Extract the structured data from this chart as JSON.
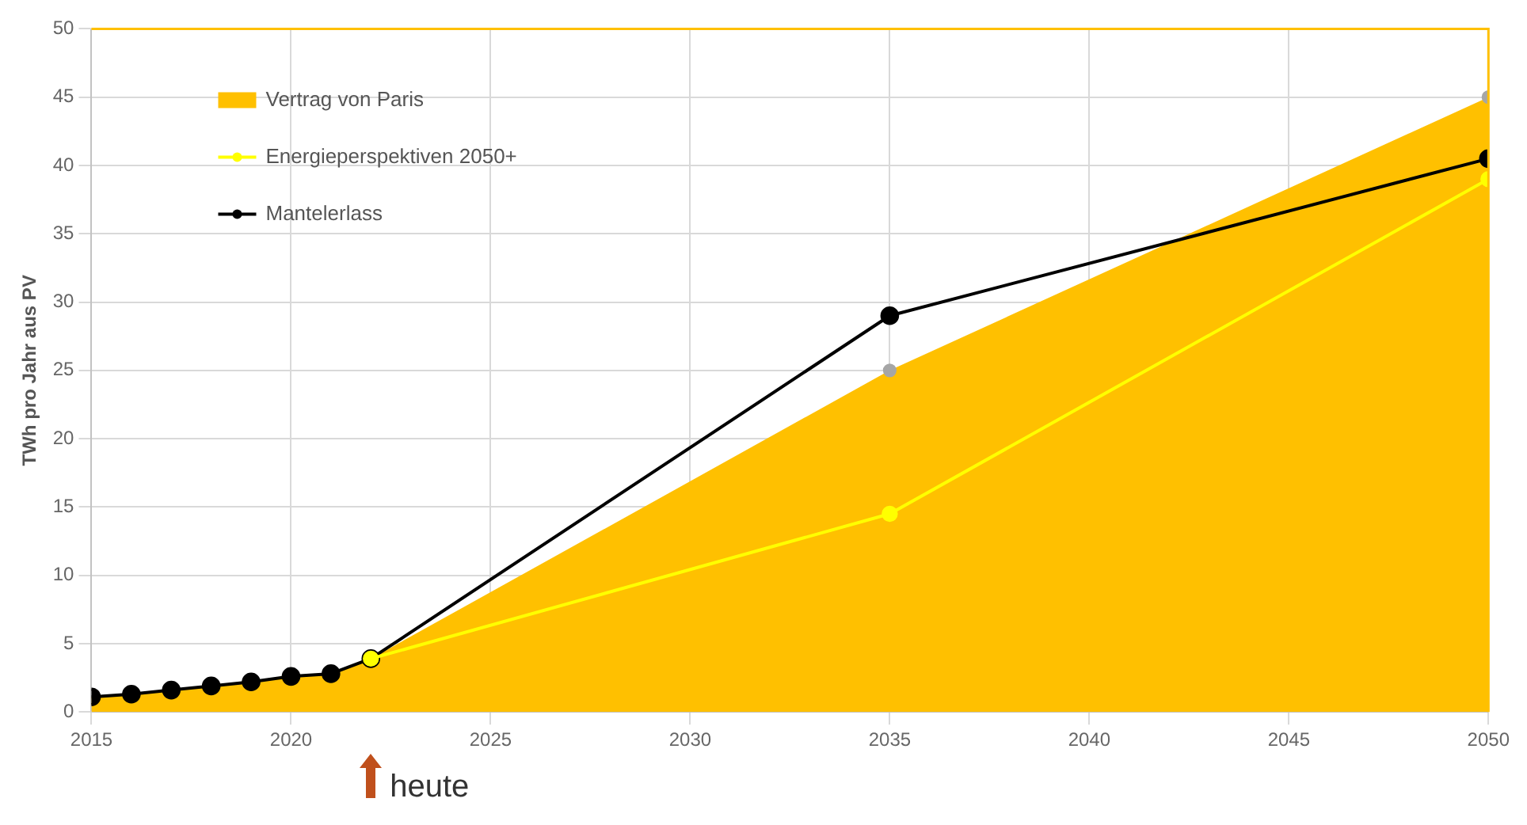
{
  "chart_data": {
    "type": "line",
    "ylabel": "TWh pro Jahr aus PV",
    "xlim": [
      2015,
      2050
    ],
    "xticks": [
      2015,
      2020,
      2025,
      2030,
      2035,
      2040,
      2045,
      2050
    ],
    "ylim": [
      0,
      50
    ],
    "yticks": [
      0,
      5,
      10,
      15,
      20,
      25,
      30,
      35,
      40,
      45,
      50
    ],
    "grid": true,
    "legend": "top left",
    "series": [
      {
        "name": "Vertrag von Paris",
        "type": "area",
        "marker": "none",
        "color": "#ffc000",
        "x": [
          2015,
          2016,
          2017,
          2018,
          2019,
          2020,
          2021,
          2022,
          2035,
          2050
        ],
        "values": [
          1.1,
          1.3,
          1.6,
          1.9,
          2.2,
          2.6,
          2.8,
          3.9,
          25,
          45
        ]
      },
      {
        "type": "scatter",
        "marker": "circle",
        "color": "#a6a6a6",
        "x": [
          2035,
          2050
        ],
        "values": [
          25,
          45
        ]
      },
      {
        "name": "Energieperspektiven 2050+",
        "marker": "circle",
        "color": "#ffff00",
        "x": [
          2022,
          2035,
          2050
        ],
        "values": [
          3.9,
          14.5,
          39
        ]
      },
      {
        "name": "Mantelerlass",
        "marker": "circle",
        "color": "#000000",
        "x": [
          2015,
          2016,
          2017,
          2018,
          2019,
          2020,
          2021,
          2022,
          2035,
          2050
        ],
        "values": [
          1.1,
          1.3,
          1.6,
          1.9,
          2.2,
          2.6,
          2.8,
          3.9,
          29,
          40.5
        ]
      }
    ],
    "annotations": [
      "heute"
    ]
  }
}
